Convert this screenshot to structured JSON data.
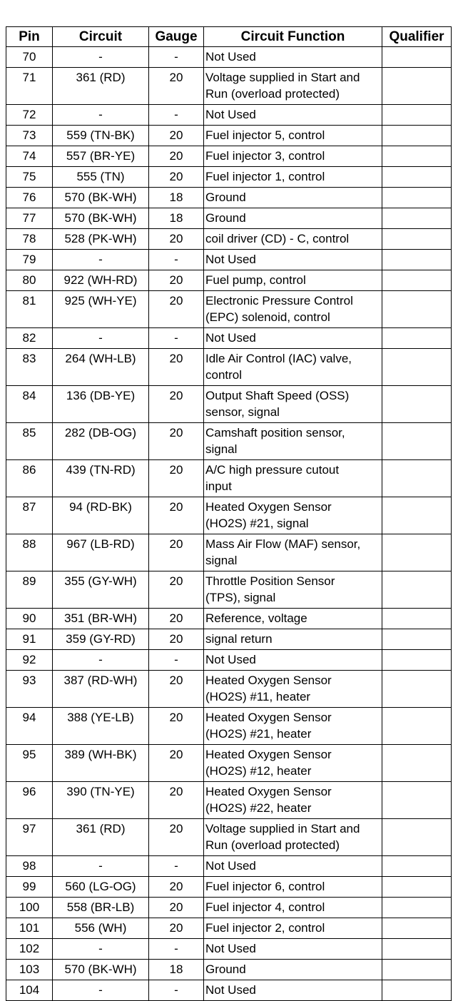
{
  "table": {
    "headers": [
      "Pin",
      "Circuit",
      "Gauge",
      "Circuit Function",
      "Qualifier"
    ],
    "rows": [
      {
        "pin": "70",
        "circuit": "-",
        "gauge": "-",
        "function": "Not Used",
        "qualifier": ""
      },
      {
        "pin": "71",
        "circuit": "361 (RD)",
        "gauge": "20",
        "function": "Voltage supplied in Start and\nRun (overload protected)",
        "qualifier": ""
      },
      {
        "pin": "72",
        "circuit": "-",
        "gauge": "-",
        "function": "Not Used",
        "qualifier": ""
      },
      {
        "pin": "73",
        "circuit": "559 (TN-BK)",
        "gauge": "20",
        "function": "Fuel injector 5, control",
        "qualifier": ""
      },
      {
        "pin": "74",
        "circuit": "557 (BR-YE)",
        "gauge": "20",
        "function": "Fuel injector 3, control",
        "qualifier": ""
      },
      {
        "pin": "75",
        "circuit": "555 (TN)",
        "gauge": "20",
        "function": "Fuel injector 1, control",
        "qualifier": ""
      },
      {
        "pin": "76",
        "circuit": "570 (BK-WH)",
        "gauge": "18",
        "function": "Ground",
        "qualifier": ""
      },
      {
        "pin": "77",
        "circuit": "570 (BK-WH)",
        "gauge": "18",
        "function": "Ground",
        "qualifier": ""
      },
      {
        "pin": "78",
        "circuit": "528 (PK-WH)",
        "gauge": "20",
        "function": "coil driver (CD) - C, control",
        "qualifier": ""
      },
      {
        "pin": "79",
        "circuit": "-",
        "gauge": "-",
        "function": "Not Used",
        "qualifier": ""
      },
      {
        "pin": "80",
        "circuit": "922 (WH-RD)",
        "gauge": "20",
        "function": "Fuel pump, control",
        "qualifier": ""
      },
      {
        "pin": "81",
        "circuit": "925 (WH-YE)",
        "gauge": "20",
        "function": "Electronic Pressure Control\n(EPC) solenoid, control",
        "qualifier": ""
      },
      {
        "pin": "82",
        "circuit": "-",
        "gauge": "-",
        "function": "Not Used",
        "qualifier": ""
      },
      {
        "pin": "83",
        "circuit": "264 (WH-LB)",
        "gauge": "20",
        "function": "Idle Air Control (IAC) valve,\ncontrol",
        "qualifier": ""
      },
      {
        "pin": "84",
        "circuit": "136 (DB-YE)",
        "gauge": "20",
        "function": "Output Shaft Speed (OSS)\nsensor, signal",
        "qualifier": ""
      },
      {
        "pin": "85",
        "circuit": "282 (DB-OG)",
        "gauge": "20",
        "function": "Camshaft position sensor,\nsignal",
        "qualifier": ""
      },
      {
        "pin": "86",
        "circuit": "439 (TN-RD)",
        "gauge": "20",
        "function": "A/C high pressure cutout\ninput",
        "qualifier": ""
      },
      {
        "pin": "87",
        "circuit": "94 (RD-BK)",
        "gauge": "20",
        "function": "Heated Oxygen Sensor\n(HO2S) #21, signal",
        "qualifier": ""
      },
      {
        "pin": "88",
        "circuit": "967 (LB-RD)",
        "gauge": "20",
        "function": "Mass Air Flow (MAF) sensor,\nsignal",
        "qualifier": ""
      },
      {
        "pin": "89",
        "circuit": "355 (GY-WH)",
        "gauge": "20",
        "function": "Throttle Position Sensor\n(TPS), signal",
        "qualifier": ""
      },
      {
        "pin": "90",
        "circuit": "351 (BR-WH)",
        "gauge": "20",
        "function": "Reference, voltage",
        "qualifier": ""
      },
      {
        "pin": "91",
        "circuit": "359 (GY-RD)",
        "gauge": "20",
        "function": "signal return",
        "qualifier": ""
      },
      {
        "pin": "92",
        "circuit": "-",
        "gauge": "-",
        "function": "Not Used",
        "qualifier": ""
      },
      {
        "pin": "93",
        "circuit": "387 (RD-WH)",
        "gauge": "20",
        "function": "Heated Oxygen Sensor\n(HO2S) #11, heater",
        "qualifier": ""
      },
      {
        "pin": "94",
        "circuit": "388 (YE-LB)",
        "gauge": "20",
        "function": "Heated Oxygen Sensor\n(HO2S) #21, heater",
        "qualifier": ""
      },
      {
        "pin": "95",
        "circuit": "389 (WH-BK)",
        "gauge": "20",
        "function": "Heated Oxygen Sensor\n(HO2S) #12, heater",
        "qualifier": ""
      },
      {
        "pin": "96",
        "circuit": "390 (TN-YE)",
        "gauge": "20",
        "function": "Heated Oxygen Sensor\n(HO2S) #22, heater",
        "qualifier": ""
      },
      {
        "pin": "97",
        "circuit": "361 (RD)",
        "gauge": "20",
        "function": "Voltage supplied in Start and\nRun (overload protected)",
        "qualifier": ""
      },
      {
        "pin": "98",
        "circuit": "-",
        "gauge": "-",
        "function": "Not Used",
        "qualifier": ""
      },
      {
        "pin": "99",
        "circuit": "560 (LG-OG)",
        "gauge": "20",
        "function": "Fuel injector 6, control",
        "qualifier": ""
      },
      {
        "pin": "100",
        "circuit": "558 (BR-LB)",
        "gauge": "20",
        "function": "Fuel injector 4, control",
        "qualifier": ""
      },
      {
        "pin": "101",
        "circuit": "556 (WH)",
        "gauge": "20",
        "function": "Fuel injector 2, control",
        "qualifier": ""
      },
      {
        "pin": "102",
        "circuit": "-",
        "gauge": "-",
        "function": "Not Used",
        "qualifier": ""
      },
      {
        "pin": "103",
        "circuit": "570 (BK-WH)",
        "gauge": "18",
        "function": "Ground",
        "qualifier": ""
      },
      {
        "pin": "104",
        "circuit": "-",
        "gauge": "-",
        "function": "Not Used",
        "qualifier": ""
      }
    ]
  }
}
